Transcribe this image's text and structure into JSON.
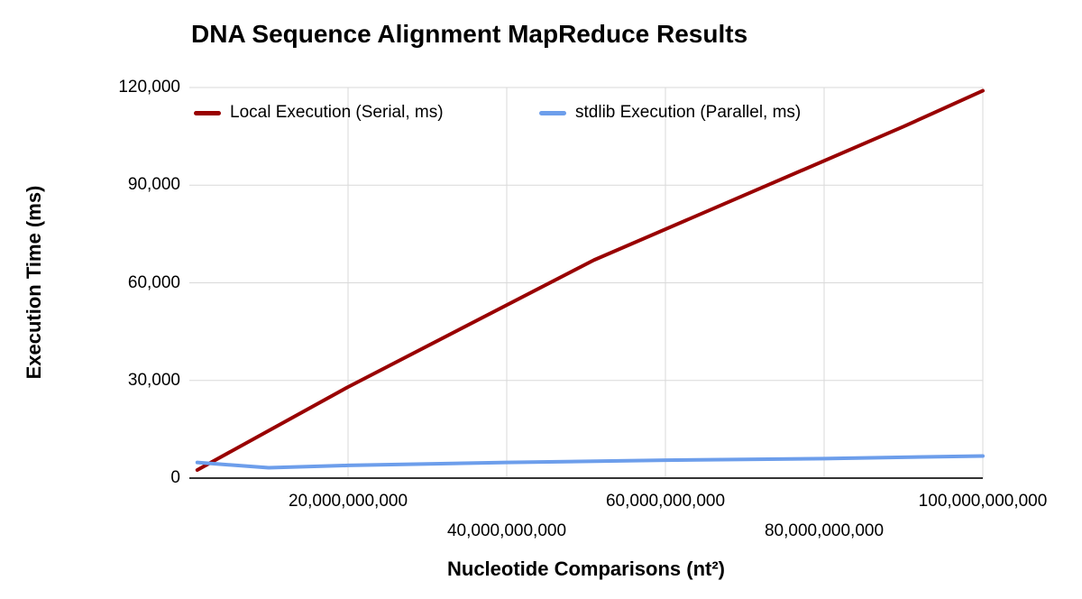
{
  "chart_data": {
    "type": "line",
    "title": "DNA Sequence Alignment MapReduce Results",
    "xlabel": "Nucleotide Comparisons (nt²)",
    "ylabel": "Execution Time (ms)",
    "xlim": [
      0,
      100000000000
    ],
    "ylim": [
      0,
      120000
    ],
    "grid": true,
    "grid_color": "#d9d9d9",
    "axis_color": "#333333",
    "legend_position": "top-inside",
    "x_ticks": [
      {
        "value": 20000000000,
        "label": "20,000,000,000",
        "row": 1
      },
      {
        "value": 40000000000,
        "label": "40,000,000,000",
        "row": 2
      },
      {
        "value": 60000000000,
        "label": "60,000,000,000",
        "row": 1
      },
      {
        "value": 80000000000,
        "label": "80,000,000,000",
        "row": 2
      },
      {
        "value": 100000000000,
        "label": "100,000,000,000",
        "row": 1
      }
    ],
    "y_ticks": [
      {
        "value": 120000,
        "label": "120,000"
      },
      {
        "value": 90000,
        "label": "90,000"
      },
      {
        "value": 60000,
        "label": "60,000"
      },
      {
        "value": 30000,
        "label": "30,000"
      },
      {
        "value": 0,
        "label": "0"
      }
    ],
    "series": [
      {
        "name": "Local Execution (Serial, ms)",
        "color": "#990000",
        "points": [
          [
            1000000000,
            2500
          ],
          [
            20000000000,
            28000
          ],
          [
            51000000000,
            67000
          ],
          [
            90000000000,
            108000
          ],
          [
            100000000000,
            119000
          ]
        ]
      },
      {
        "name": "stdlib Execution (Parallel, ms)",
        "color": "#6d9eeb",
        "points": [
          [
            1000000000,
            4800
          ],
          [
            10000000000,
            3200
          ],
          [
            20000000000,
            3900
          ],
          [
            40000000000,
            4800
          ],
          [
            60000000000,
            5500
          ],
          [
            80000000000,
            6000
          ],
          [
            100000000000,
            6800
          ]
        ]
      }
    ]
  }
}
